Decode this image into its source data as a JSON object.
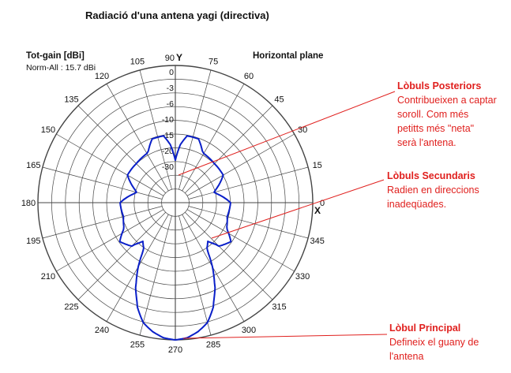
{
  "title": "Radiació d'una antena yagi (directiva)",
  "gain_label": "Tot-gain [dBi]",
  "norm_label": "Norm-All : 15.7 dBi",
  "plane_label": "Horizontal plane",
  "axis_labels": {
    "y": "Y",
    "x": "X"
  },
  "colors": {
    "pattern": "#0a1fc8",
    "annotation": "#e0201e",
    "grid": "#444444"
  },
  "annotations": [
    {
      "title": "Lòbuls Posteriors",
      "lines": [
        "Contribueixen a captar",
        "soroll. Com més",
        "petitts més \"neta\"",
        "serà l'antena."
      ]
    },
    {
      "title": "Lòbuls Secundaris",
      "lines": [
        "Radien en direccions",
        "inadeqüades."
      ]
    },
    {
      "title": "Lòbul Principal",
      "lines": [
        "Defineix el guany de",
        "l'antena"
      ]
    }
  ],
  "chart_data": {
    "type": "polar",
    "angle_unit": "degrees",
    "angle_ticks": [
      0,
      15,
      30,
      45,
      60,
      75,
      90,
      105,
      120,
      135,
      150,
      165,
      180,
      195,
      210,
      225,
      240,
      255,
      270,
      285,
      300,
      315,
      330,
      345
    ],
    "radial_unit": "dB",
    "radial_ticks": [
      0,
      -3,
      -6,
      -10,
      -15,
      -20,
      -30
    ],
    "radial_tick_labels": [
      "0",
      "-3",
      "-6",
      "-10",
      "-15",
      "-20",
      "-30"
    ],
    "pattern": {
      "angles_deg": [
        0,
        15,
        30,
        45,
        60,
        70,
        80,
        85,
        90,
        95,
        100,
        110,
        120,
        135,
        150,
        165,
        180,
        195,
        205,
        215,
        225,
        230,
        235,
        240,
        245,
        250,
        255,
        260,
        265,
        270,
        275,
        280,
        285,
        290,
        295,
        300,
        305,
        310,
        315,
        325,
        335,
        345
      ],
      "values_db": [
        -22,
        -32,
        -22,
        -22,
        -21,
        -17,
        -17,
        -20,
        -30,
        -20,
        -17,
        -17,
        -21,
        -22,
        -22,
        -32,
        -22,
        -23,
        -21,
        -17,
        -19,
        -25,
        -22,
        -15,
        -9,
        -5,
        -2.5,
        -1.2,
        -0.3,
        0,
        -0.3,
        -1.2,
        -2.5,
        -5,
        -9,
        -15,
        -22,
        -25,
        -19,
        -17,
        -21,
        -23
      ]
    }
  }
}
